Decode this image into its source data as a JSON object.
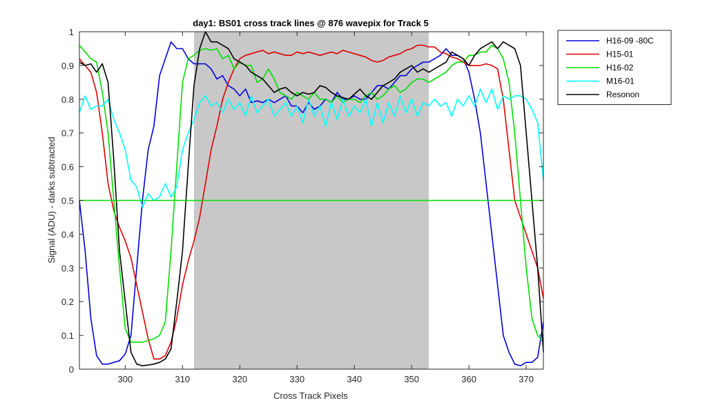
{
  "chart_data": {
    "type": "line",
    "title": "day1: BS01  cross track lines @ 876 wavepix for Track 5",
    "xlabel": "Cross Track Pixels",
    "ylabel": "Signal (ADU) - darks subtracted",
    "xlim": [
      292,
      373
    ],
    "ylim": [
      0,
      1
    ],
    "xticks": [
      "300",
      "310",
      "320",
      "330",
      "340",
      "350",
      "360",
      "370"
    ],
    "yticks": [
      "0",
      "0.1",
      "0.2",
      "0.3",
      "0.4",
      "0.5",
      "0.6",
      "0.7",
      "0.8",
      "0.9",
      "1"
    ],
    "shaded_region": {
      "x": [
        312,
        353
      ],
      "color": "#c8c8c8"
    },
    "reference_line": {
      "y": 0.5,
      "color": "#00dd00"
    },
    "legend": {
      "placement": "outside-top-right"
    },
    "series": [
      {
        "name": "H16-09 -80C",
        "color": "#0000dd",
        "x": [
          292,
          293,
          294,
          295,
          296,
          297,
          298,
          299,
          300,
          301,
          302,
          303,
          304,
          305,
          306,
          307,
          308,
          309,
          310,
          311,
          312,
          313,
          314,
          315,
          316,
          317,
          318,
          319,
          320,
          321,
          322,
          323,
          324,
          325,
          326,
          327,
          328,
          329,
          330,
          331,
          332,
          333,
          334,
          335,
          336,
          337,
          338,
          339,
          340,
          341,
          342,
          343,
          344,
          345,
          346,
          347,
          348,
          349,
          350,
          351,
          352,
          353,
          354,
          355,
          356,
          357,
          358,
          359,
          360,
          361,
          362,
          363,
          364,
          365,
          366,
          367,
          368,
          369,
          370,
          371,
          372,
          373
        ],
        "y": [
          0.5,
          0.35,
          0.15,
          0.04,
          0.015,
          0.015,
          0.02,
          0.025,
          0.045,
          0.1,
          0.3,
          0.5,
          0.65,
          0.72,
          0.87,
          0.92,
          0.97,
          0.95,
          0.95,
          0.92,
          0.905,
          0.905,
          0.905,
          0.89,
          0.86,
          0.87,
          0.84,
          0.83,
          0.81,
          0.83,
          0.79,
          0.795,
          0.79,
          0.8,
          0.79,
          0.8,
          0.81,
          0.78,
          0.78,
          0.76,
          0.79,
          0.77,
          0.78,
          0.8,
          0.79,
          0.82,
          0.8,
          0.8,
          0.81,
          0.8,
          0.8,
          0.82,
          0.84,
          0.84,
          0.83,
          0.85,
          0.87,
          0.87,
          0.89,
          0.9,
          0.91,
          0.91,
          0.92,
          0.93,
          0.95,
          0.93,
          0.93,
          0.92,
          0.88,
          0.8,
          0.7,
          0.55,
          0.4,
          0.25,
          0.1,
          0.05,
          0.015,
          0.01,
          0.02,
          0.02,
          0.035,
          0.14
        ]
      },
      {
        "name": "H15-01",
        "color": "#dd0000",
        "x": [
          292,
          293,
          294,
          295,
          296,
          297,
          298,
          299,
          300,
          301,
          302,
          303,
          304,
          305,
          306,
          307,
          308,
          309,
          310,
          311,
          312,
          313,
          314,
          315,
          316,
          317,
          318,
          319,
          320,
          321,
          322,
          323,
          324,
          325,
          326,
          327,
          328,
          329,
          330,
          331,
          332,
          333,
          334,
          335,
          336,
          337,
          338,
          339,
          340,
          341,
          342,
          343,
          344,
          345,
          346,
          347,
          348,
          349,
          350,
          351,
          352,
          353,
          354,
          355,
          356,
          357,
          358,
          359,
          360,
          361,
          362,
          363,
          364,
          365,
          366,
          367,
          368,
          369,
          370,
          371,
          372,
          373
        ],
        "y": [
          0.92,
          0.9,
          0.88,
          0.82,
          0.7,
          0.55,
          0.47,
          0.42,
          0.38,
          0.33,
          0.25,
          0.17,
          0.09,
          0.03,
          0.03,
          0.04,
          0.08,
          0.15,
          0.25,
          0.32,
          0.38,
          0.45,
          0.55,
          0.65,
          0.72,
          0.8,
          0.85,
          0.89,
          0.92,
          0.93,
          0.935,
          0.94,
          0.945,
          0.935,
          0.94,
          0.935,
          0.93,
          0.93,
          0.94,
          0.935,
          0.94,
          0.935,
          0.93,
          0.935,
          0.94,
          0.935,
          0.945,
          0.94,
          0.935,
          0.93,
          0.925,
          0.915,
          0.91,
          0.915,
          0.925,
          0.93,
          0.935,
          0.945,
          0.95,
          0.96,
          0.96,
          0.955,
          0.955,
          0.94,
          0.935,
          0.925,
          0.92,
          0.91,
          0.9,
          0.9,
          0.9,
          0.905,
          0.9,
          0.89,
          0.8,
          0.65,
          0.5,
          0.45,
          0.4,
          0.35,
          0.3,
          0.21
        ]
      },
      {
        "name": "H16-02",
        "color": "#00dd00",
        "x": [
          292,
          293,
          294,
          295,
          296,
          297,
          298,
          299,
          300,
          301,
          302,
          303,
          304,
          305,
          306,
          307,
          308,
          309,
          310,
          311,
          312,
          313,
          314,
          315,
          316,
          317,
          318,
          319,
          320,
          321,
          322,
          323,
          324,
          325,
          326,
          327,
          328,
          329,
          330,
          331,
          332,
          333,
          334,
          335,
          336,
          337,
          338,
          339,
          340,
          341,
          342,
          343,
          344,
          345,
          346,
          347,
          348,
          349,
          350,
          351,
          352,
          353,
          354,
          355,
          356,
          357,
          358,
          359,
          360,
          361,
          362,
          363,
          364,
          365,
          366,
          367,
          368,
          369,
          370,
          371,
          372,
          373
        ],
        "y": [
          0.96,
          0.94,
          0.92,
          0.91,
          0.82,
          0.7,
          0.5,
          0.3,
          0.12,
          0.08,
          0.08,
          0.08,
          0.085,
          0.09,
          0.1,
          0.14,
          0.35,
          0.6,
          0.85,
          0.92,
          0.93,
          0.945,
          0.95,
          0.945,
          0.95,
          0.92,
          0.93,
          0.89,
          0.91,
          0.9,
          0.9,
          0.85,
          0.86,
          0.89,
          0.86,
          0.82,
          0.81,
          0.8,
          0.82,
          0.81,
          0.8,
          0.82,
          0.8,
          0.8,
          0.79,
          0.81,
          0.79,
          0.8,
          0.8,
          0.79,
          0.81,
          0.82,
          0.8,
          0.81,
          0.83,
          0.84,
          0.82,
          0.83,
          0.85,
          0.86,
          0.86,
          0.85,
          0.86,
          0.87,
          0.88,
          0.9,
          0.91,
          0.91,
          0.93,
          0.93,
          0.94,
          0.94,
          0.96,
          0.95,
          0.92,
          0.85,
          0.7,
          0.5,
          0.3,
          0.15,
          0.1,
          0.08
        ]
      },
      {
        "name": "M16-01",
        "color": "#00ffff",
        "x": [
          292,
          293,
          294,
          295,
          296,
          297,
          298,
          299,
          300,
          301,
          302,
          303,
          304,
          305,
          306,
          307,
          308,
          309,
          310,
          311,
          312,
          313,
          314,
          315,
          316,
          317,
          318,
          319,
          320,
          321,
          322,
          323,
          324,
          325,
          326,
          327,
          328,
          329,
          330,
          331,
          332,
          333,
          334,
          335,
          336,
          337,
          338,
          339,
          340,
          341,
          342,
          343,
          344,
          345,
          346,
          347,
          348,
          349,
          350,
          351,
          352,
          353,
          354,
          355,
          356,
          357,
          358,
          359,
          360,
          361,
          362,
          363,
          364,
          365,
          366,
          367,
          368,
          369,
          370,
          371,
          372,
          373
        ],
        "y": [
          0.76,
          0.81,
          0.77,
          0.78,
          0.78,
          0.8,
          0.74,
          0.7,
          0.65,
          0.56,
          0.54,
          0.48,
          0.52,
          0.5,
          0.51,
          0.55,
          0.51,
          0.54,
          0.65,
          0.7,
          0.74,
          0.79,
          0.81,
          0.78,
          0.79,
          0.76,
          0.8,
          0.77,
          0.79,
          0.75,
          0.81,
          0.76,
          0.78,
          0.8,
          0.75,
          0.77,
          0.79,
          0.75,
          0.78,
          0.73,
          0.8,
          0.75,
          0.78,
          0.72,
          0.79,
          0.74,
          0.8,
          0.75,
          0.78,
          0.76,
          0.8,
          0.72,
          0.79,
          0.73,
          0.79,
          0.75,
          0.81,
          0.76,
          0.8,
          0.75,
          0.79,
          0.78,
          0.8,
          0.78,
          0.79,
          0.75,
          0.8,
          0.78,
          0.81,
          0.78,
          0.83,
          0.79,
          0.83,
          0.77,
          0.81,
          0.8,
          0.81,
          0.81,
          0.8,
          0.77,
          0.73,
          0.56
        ]
      },
      {
        "name": "Resonon",
        "color": "#000000",
        "x": [
          292,
          293,
          294,
          295,
          296,
          297,
          298,
          299,
          300,
          301,
          302,
          303,
          304,
          305,
          306,
          307,
          308,
          309,
          310,
          311,
          312,
          313,
          314,
          315,
          316,
          317,
          318,
          319,
          320,
          321,
          322,
          323,
          324,
          325,
          326,
          327,
          328,
          329,
          330,
          331,
          332,
          333,
          334,
          335,
          336,
          337,
          338,
          339,
          340,
          341,
          342,
          343,
          344,
          345,
          346,
          347,
          348,
          349,
          350,
          351,
          352,
          353,
          354,
          355,
          356,
          357,
          358,
          359,
          360,
          361,
          362,
          363,
          364,
          365,
          366,
          367,
          368,
          369,
          370,
          371,
          372,
          373
        ],
        "y": [
          0.91,
          0.9,
          0.905,
          0.88,
          0.905,
          0.85,
          0.62,
          0.35,
          0.2,
          0.05,
          0.015,
          0.01,
          0.012,
          0.015,
          0.02,
          0.03,
          0.06,
          0.2,
          0.35,
          0.6,
          0.84,
          0.95,
          1.0,
          0.97,
          0.97,
          0.96,
          0.95,
          0.92,
          0.91,
          0.9,
          0.88,
          0.87,
          0.86,
          0.84,
          0.82,
          0.83,
          0.835,
          0.82,
          0.81,
          0.82,
          0.815,
          0.82,
          0.84,
          0.835,
          0.82,
          0.81,
          0.805,
          0.8,
          0.815,
          0.83,
          0.81,
          0.8,
          0.82,
          0.84,
          0.85,
          0.86,
          0.88,
          0.89,
          0.9,
          0.88,
          0.89,
          0.88,
          0.89,
          0.9,
          0.91,
          0.94,
          0.93,
          0.92,
          0.9,
          0.93,
          0.95,
          0.96,
          0.97,
          0.95,
          0.97,
          0.96,
          0.95,
          0.9,
          0.7,
          0.5,
          0.3,
          0.05
        ]
      }
    ]
  }
}
